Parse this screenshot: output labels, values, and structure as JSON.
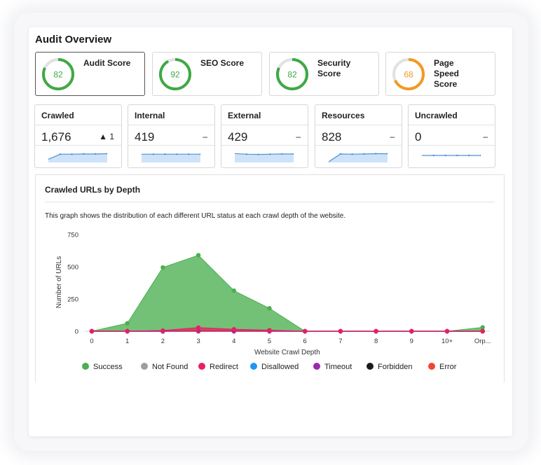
{
  "title": "Audit Overview",
  "scores": [
    {
      "label": "Audit Score",
      "value": 82,
      "color": "#3fa944",
      "selected": true
    },
    {
      "label": "SEO Score",
      "value": 92,
      "color": "#3fa944",
      "selected": false
    },
    {
      "label": "Security Score",
      "value": 82,
      "color": "#3fa944",
      "selected": false
    },
    {
      "label": "Page Speed Score",
      "value": 68,
      "color": "#f29a22",
      "selected": false
    }
  ],
  "stats": [
    {
      "label": "Crawled",
      "value": "1,676",
      "delta": "▲ 1",
      "spark": [
        0.2,
        0.6,
        0.6,
        0.62,
        0.62,
        0.64
      ]
    },
    {
      "label": "Internal",
      "value": "419",
      "delta": "–",
      "spark": [
        0.6,
        0.6,
        0.6,
        0.6,
        0.6,
        0.6
      ]
    },
    {
      "label": "External",
      "value": "429",
      "delta": "–",
      "spark": [
        0.65,
        0.6,
        0.58,
        0.6,
        0.62,
        0.62
      ]
    },
    {
      "label": "Resources",
      "value": "828",
      "delta": "–",
      "spark": [
        0.0,
        0.62,
        0.6,
        0.62,
        0.64,
        0.64
      ]
    },
    {
      "label": "Uncrawled",
      "value": "0",
      "delta": "–",
      "spark": [
        0.5,
        0.5,
        0.5,
        0.5,
        0.5,
        0.5
      ]
    }
  ],
  "panel": {
    "title": "Crawled URLs by Depth",
    "description": "This graph shows the distribution of each different URL status at each crawl depth of the website."
  },
  "chart_data": {
    "type": "area",
    "xlabel": "Website Crawl Depth",
    "ylabel": "Number of URLs",
    "ylim": [
      0,
      750
    ],
    "yticks": [
      0,
      250,
      500,
      750
    ],
    "categories": [
      "0",
      "1",
      "2",
      "3",
      "4",
      "5",
      "6",
      "7",
      "8",
      "9",
      "10+",
      "Orp..."
    ],
    "series": [
      {
        "name": "Success",
        "color": "#4caf50",
        "values": [
          0,
          62,
          495,
          590,
          315,
          178,
          0,
          0,
          0,
          0,
          0,
          30
        ]
      },
      {
        "name": "Not Found",
        "color": "#9e9e9e",
        "values": [
          0,
          0,
          0,
          0,
          0,
          0,
          0,
          0,
          0,
          0,
          0,
          0
        ]
      },
      {
        "name": "Redirect",
        "color": "#e91e63",
        "values": [
          0,
          0,
          5,
          28,
          15,
          8,
          0,
          0,
          0,
          0,
          0,
          0
        ]
      },
      {
        "name": "Disallowed",
        "color": "#2196f3",
        "values": [
          0,
          0,
          0,
          0,
          0,
          0,
          0,
          0,
          0,
          0,
          0,
          0
        ]
      },
      {
        "name": "Timeout",
        "color": "#9c27b0",
        "values": [
          0,
          0,
          0,
          5,
          3,
          2,
          0,
          0,
          0,
          0,
          0,
          0
        ]
      },
      {
        "name": "Forbidden",
        "color": "#1a1a1a",
        "values": [
          0,
          0,
          0,
          0,
          0,
          0,
          0,
          0,
          0,
          0,
          0,
          0
        ]
      },
      {
        "name": "Error",
        "color": "#f44336",
        "values": [
          0,
          0,
          0,
          0,
          0,
          0,
          0,
          0,
          0,
          0,
          0,
          0
        ]
      }
    ],
    "legend_position": "bottom",
    "grid": false
  }
}
